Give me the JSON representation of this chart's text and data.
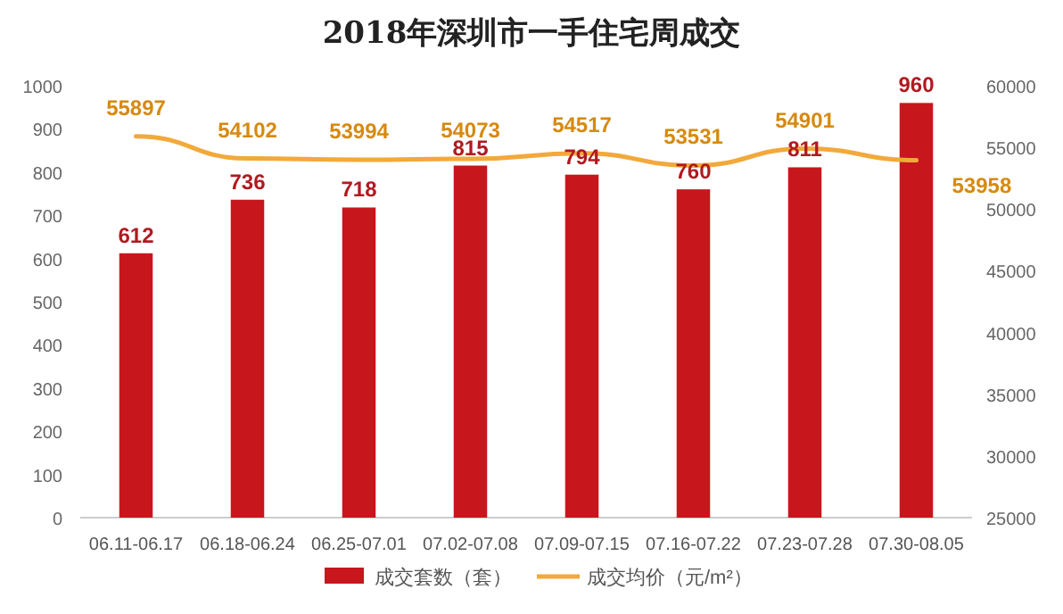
{
  "chart_data": {
    "type": "bar",
    "title": "2018年深圳市一手住宅周成交",
    "categories": [
      "06.11-06.17",
      "06.18-06.24",
      "06.25-07.01",
      "07.02-07.08",
      "07.09-07.15",
      "07.16-07.22",
      "07.23-07.28",
      "07.30-08.05"
    ],
    "series": [
      {
        "name": "成交套数（套）",
        "color": "#c8161d",
        "values": [
          612,
          736,
          718,
          815,
          794,
          760,
          811,
          960
        ]
      },
      {
        "name": "成交均价（元/m²）",
        "type": "line",
        "axis": "y2",
        "color": "#f2a93b",
        "values": [
          55897,
          54102,
          53994,
          54073,
          54517,
          53531,
          54901,
          53958
        ]
      }
    ],
    "ylim": [
      0,
      1000
    ],
    "yticks": [
      0,
      100,
      200,
      300,
      400,
      500,
      600,
      700,
      800,
      900,
      1000
    ],
    "y2lim": [
      25000,
      60000
    ],
    "y2ticks": [
      25000,
      30000,
      35000,
      40000,
      45000,
      50000,
      55000,
      60000
    ],
    "data_labels": true,
    "legend": "bottom",
    "marker": "none",
    "line_style": "solid"
  }
}
